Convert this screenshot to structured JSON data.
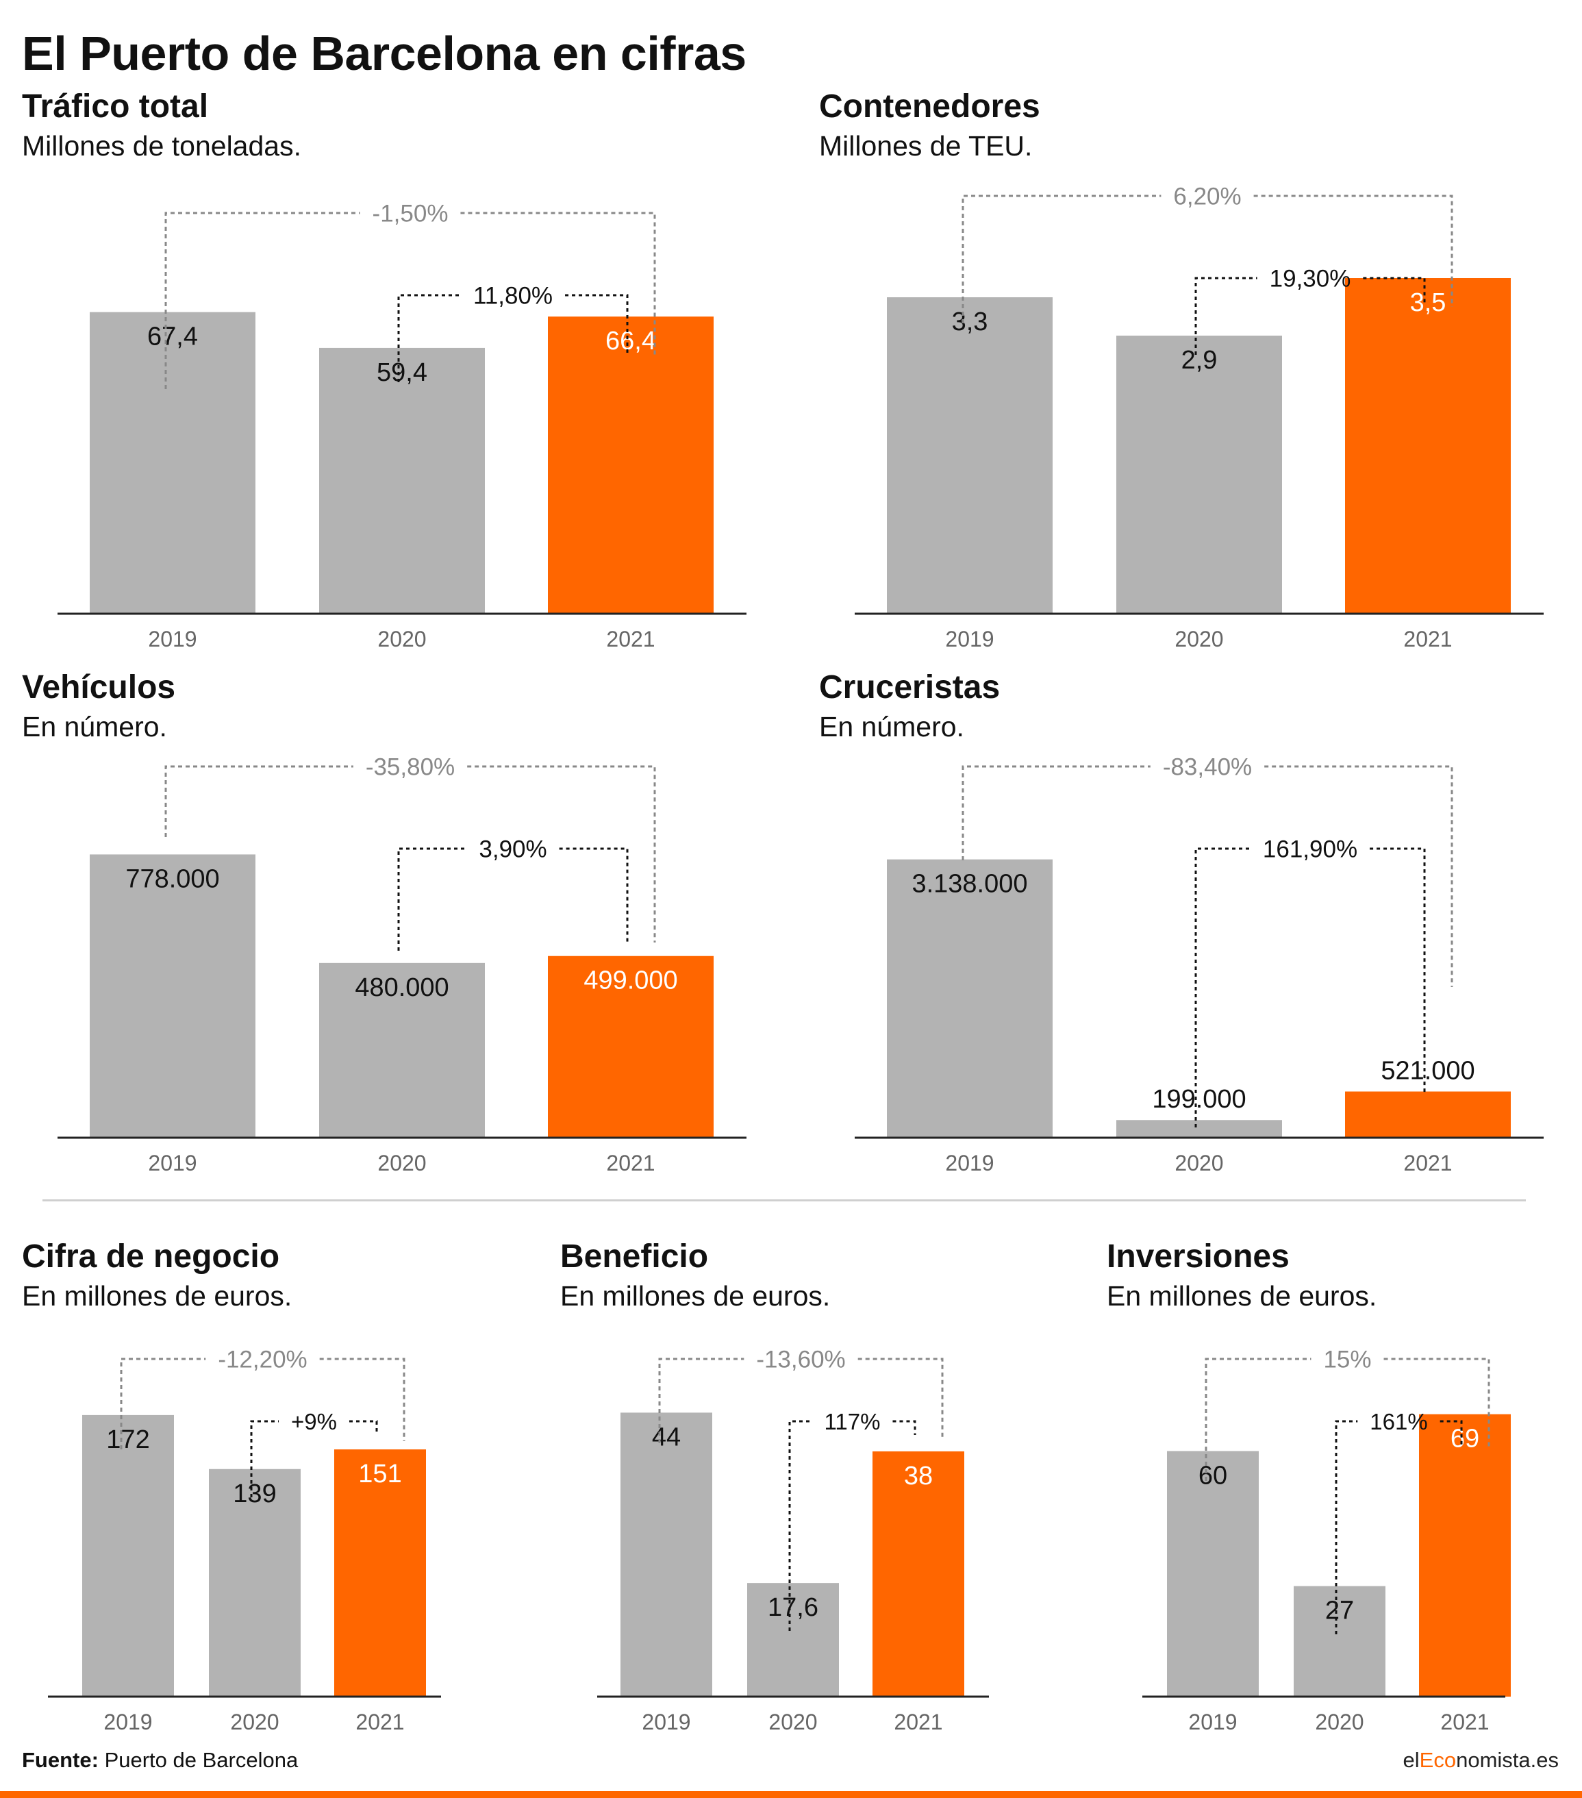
{
  "title": "El Puerto de Barcelona en cifras",
  "colors": {
    "highlight": "#ff6600",
    "bar": "#b3b3b3",
    "total_change": "#888888",
    "yoy_change": "#111111"
  },
  "footer": {
    "source_label": "Fuente:",
    "source_name": "Puerto de Barcelona",
    "brand_pre": "el",
    "brand_accent": "Eco",
    "brand_post": "nomista.es"
  },
  "chart_data": [
    {
      "type": "bar",
      "title": "Tráfico total",
      "subtitle": "Millones de toneladas.",
      "categories": [
        "2019",
        "2020",
        "2021"
      ],
      "values": [
        67.4,
        59.4,
        66.4
      ],
      "labels": [
        "67,4",
        "59,4",
        "66,4"
      ],
      "highlight": "2021",
      "change_total": "-1,50%",
      "change_yoy": "11,80%",
      "ylim": [
        0,
        90
      ]
    },
    {
      "type": "bar",
      "title": "Contenedores",
      "subtitle": "Millones de TEU.",
      "categories": [
        "2019",
        "2020",
        "2021"
      ],
      "values": [
        3.3,
        2.9,
        3.5
      ],
      "labels": [
        "3,3",
        "2,9",
        "3,5"
      ],
      "highlight": "2021",
      "change_total": "6,20%",
      "change_yoy": "19,30%",
      "ylim": [
        0,
        4.2
      ]
    },
    {
      "type": "bar",
      "title": "Vehículos",
      "subtitle": "En número.",
      "categories": [
        "2019",
        "2020",
        "2021"
      ],
      "values": [
        778000,
        480000,
        499000
      ],
      "labels": [
        "778.000",
        "480.000",
        "499.000"
      ],
      "highlight": "2021",
      "change_total": "-35,80%",
      "change_yoy": "3,90%",
      "ylim": [
        0,
        950000
      ]
    },
    {
      "type": "bar",
      "title": "Cruceristas",
      "subtitle": "En número.",
      "categories": [
        "2019",
        "2020",
        "2021"
      ],
      "values": [
        3138000,
        199000,
        521000
      ],
      "labels": [
        "3.138.000",
        "199.000",
        "521.000"
      ],
      "highlight": "2021",
      "change_total": "-83,40%",
      "change_yoy": "161,90%",
      "ylim": [
        0,
        3900000
      ]
    },
    {
      "type": "bar",
      "title": "Cifra de negocio",
      "subtitle": "En millones de euros.",
      "categories": [
        "2019",
        "2020",
        "2021"
      ],
      "values": [
        172,
        139,
        151
      ],
      "labels": [
        "172",
        "139",
        "151"
      ],
      "highlight": "2021",
      "change_total": "-12,20%",
      "change_yoy": "+9%",
      "ylim": [
        0,
        205
      ]
    },
    {
      "type": "bar",
      "title": "Beneficio",
      "subtitle": "En millones de euros.",
      "categories": [
        "2019",
        "2020",
        "2021"
      ],
      "values": [
        44,
        17.6,
        38
      ],
      "labels": [
        "44",
        "17,6",
        "38"
      ],
      "highlight": "2021",
      "change_total": "-13,60%",
      "change_yoy": "117%",
      "ylim": [
        0,
        52
      ]
    },
    {
      "type": "bar",
      "title": "Inversiones",
      "subtitle": "En millones de euros.",
      "categories": [
        "2019",
        "2020",
        "2021"
      ],
      "values": [
        60,
        27,
        69
      ],
      "labels": [
        "60",
        "27",
        "69"
      ],
      "highlight": "2021",
      "change_total": "15%",
      "change_yoy": "161%",
      "ylim": [
        0,
        82
      ]
    }
  ]
}
